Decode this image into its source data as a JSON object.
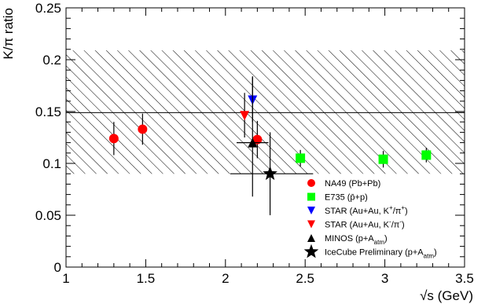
{
  "chart_data": {
    "type": "scatter",
    "xlabel": "√s (GeV)",
    "ylabel": "K/π ratio",
    "xlim": [
      1,
      3.5
    ],
    "ylim": [
      0,
      0.25
    ],
    "x_ticks": [
      {
        "value": 1,
        "label": "1"
      },
      {
        "value": 1.5,
        "label": "1.5"
      },
      {
        "value": 2,
        "label": "2"
      },
      {
        "value": 2.5,
        "label": "2.5"
      },
      {
        "value": 3,
        "label": "3"
      },
      {
        "value": 3.5,
        "label": "3.5"
      }
    ],
    "y_ticks": [
      {
        "value": 0,
        "label": "0"
      },
      {
        "value": 0.05,
        "label": "0.05"
      },
      {
        "value": 0.1,
        "label": "0.1"
      },
      {
        "value": 0.15,
        "label": "0.15"
      },
      {
        "value": 0.2,
        "label": "0.2"
      },
      {
        "value": 0.25,
        "label": "0.25"
      }
    ],
    "band": {
      "center": 0.149,
      "low": 0.09,
      "high": 0.209
    },
    "series": [
      {
        "key": "na49",
        "name": "NA49 (Pb+Pb)",
        "marker": "circle",
        "color": "#ff0000",
        "points": [
          {
            "x": 1.3,
            "y": 0.124,
            "ylo": 0.108,
            "yhi": 0.14
          },
          {
            "x": 1.48,
            "y": 0.133,
            "ylo": 0.118,
            "yhi": 0.148
          },
          {
            "x": 2.2,
            "y": 0.123,
            "ylo": 0.105,
            "yhi": 0.141
          }
        ]
      },
      {
        "key": "e735",
        "name": "E735 (p̄+p)",
        "marker": "square",
        "color": "#00ff00",
        "points": [
          {
            "x": 2.47,
            "y": 0.105,
            "ylo": 0.097,
            "yhi": 0.113
          },
          {
            "x": 2.99,
            "y": 0.104,
            "ylo": 0.096,
            "yhi": 0.112
          },
          {
            "x": 3.26,
            "y": 0.108,
            "ylo": 0.101,
            "yhi": 0.115
          }
        ]
      },
      {
        "key": "star_pos",
        "name": "STAR (Au+Au, K⁺/π⁺)",
        "marker": "triangle-down",
        "color": "#0000ff",
        "points": [
          {
            "x": 2.17,
            "y": 0.161,
            "ylo": 0.14,
            "yhi": 0.184
          }
        ]
      },
      {
        "key": "star_neg",
        "name": "STAR (Au+Au, K⁻/π⁻)",
        "marker": "triangle-down",
        "color": "#ff0000",
        "points": [
          {
            "x": 2.12,
            "y": 0.146,
            "ylo": 0.125,
            "yhi": 0.168
          }
        ]
      },
      {
        "key": "minos",
        "name": "MINOS (p+A_atm)",
        "marker": "triangle-up",
        "color": "#000000",
        "points": [
          {
            "x": 2.17,
            "y": 0.12,
            "ylo": 0.068,
            "yhi": 0.183,
            "xlo": 2.07,
            "xhi": 2.27
          }
        ]
      },
      {
        "key": "icecube",
        "name": "IceCube Preliminary (p+A_atm)",
        "marker": "star",
        "color": "#000000",
        "points": [
          {
            "x": 2.28,
            "y": 0.09,
            "ylo": 0.05,
            "yhi": 0.13,
            "xlo": 2.03,
            "xhi": 2.55
          }
        ]
      }
    ],
    "legend": {
      "placement": "bottom-right",
      "entries": [
        {
          "key": "na49",
          "prefix": "NA49 (Pb+Pb)",
          "sup": "",
          "mid": "",
          "sub": "",
          "suffix": ""
        },
        {
          "key": "e735",
          "prefix": "E735 (p̄+p)",
          "sup": "",
          "mid": "",
          "sub": "",
          "suffix": ""
        },
        {
          "key": "star_pos",
          "prefix": "STAR (Au+Au, K",
          "sup": "+",
          "mid": "/π",
          "sup2": "+",
          "suffix": ")"
        },
        {
          "key": "star_neg",
          "prefix": "STAR (Au+Au, K",
          "sup": "-",
          "mid": "/π",
          "sup2": "-",
          "suffix": ")"
        },
        {
          "key": "minos",
          "prefix": "MINOS (p+A",
          "sub": "atm",
          "suffix": ")"
        },
        {
          "key": "icecube",
          "prefix": "IceCube Preliminary (p+A",
          "sub": "atm",
          "suffix": ")"
        }
      ]
    }
  }
}
